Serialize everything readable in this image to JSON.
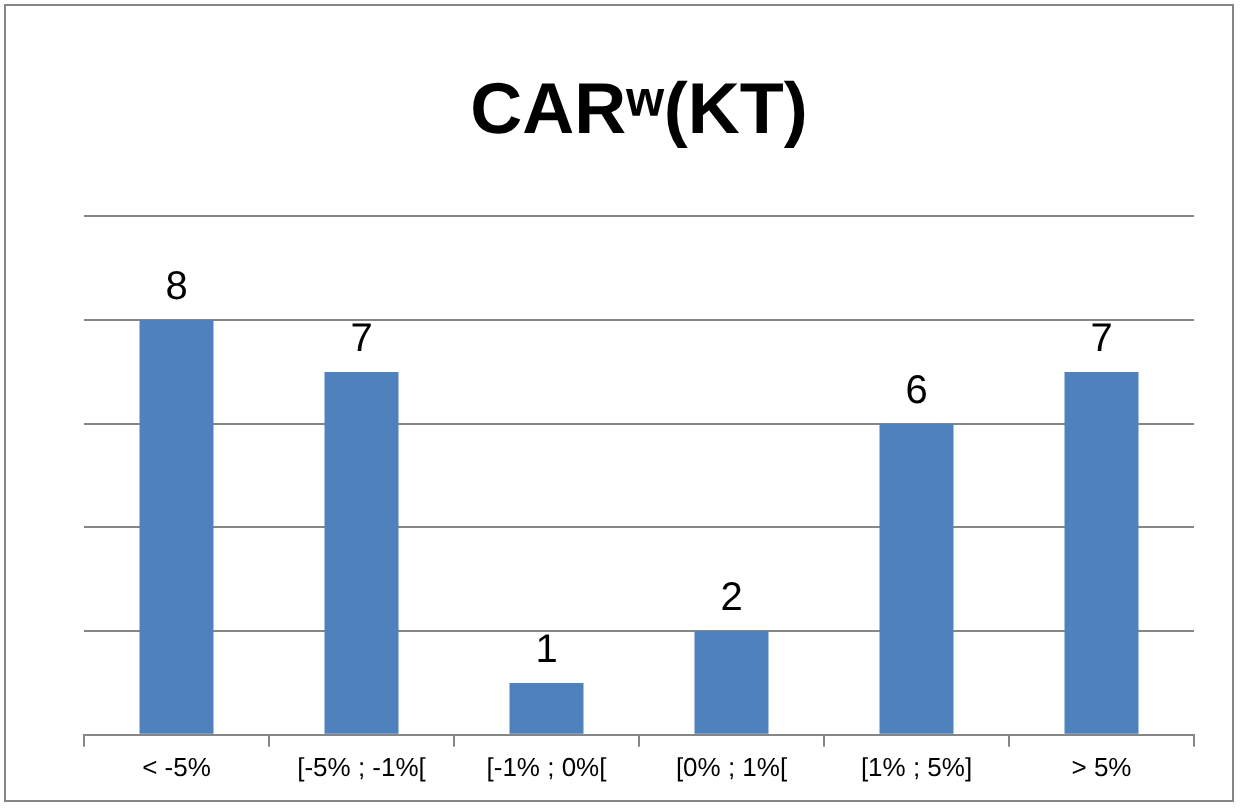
{
  "chart_data": {
    "type": "bar",
    "title": "CARʷ(KT)",
    "categories": [
      "< -5%",
      "[-5% ; -1%[",
      "[-1% ; 0%[",
      "[0% ; 1%[",
      "[1% ; 5%]",
      "> 5%"
    ],
    "values": [
      8,
      7,
      1,
      2,
      6,
      7
    ],
    "color": "#4f81bd",
    "ylim": [
      0,
      10
    ],
    "yticks": [
      {
        "value": 0,
        "label": null
      },
      {
        "value": 2,
        "label": null
      },
      {
        "value": 4,
        "label": null
      },
      {
        "value": 6,
        "label": null
      },
      {
        "value": 8,
        "label": null
      },
      {
        "value": 10,
        "label": null
      }
    ],
    "grid": "y",
    "tick_labels": "x",
    "data_labels": true
  }
}
